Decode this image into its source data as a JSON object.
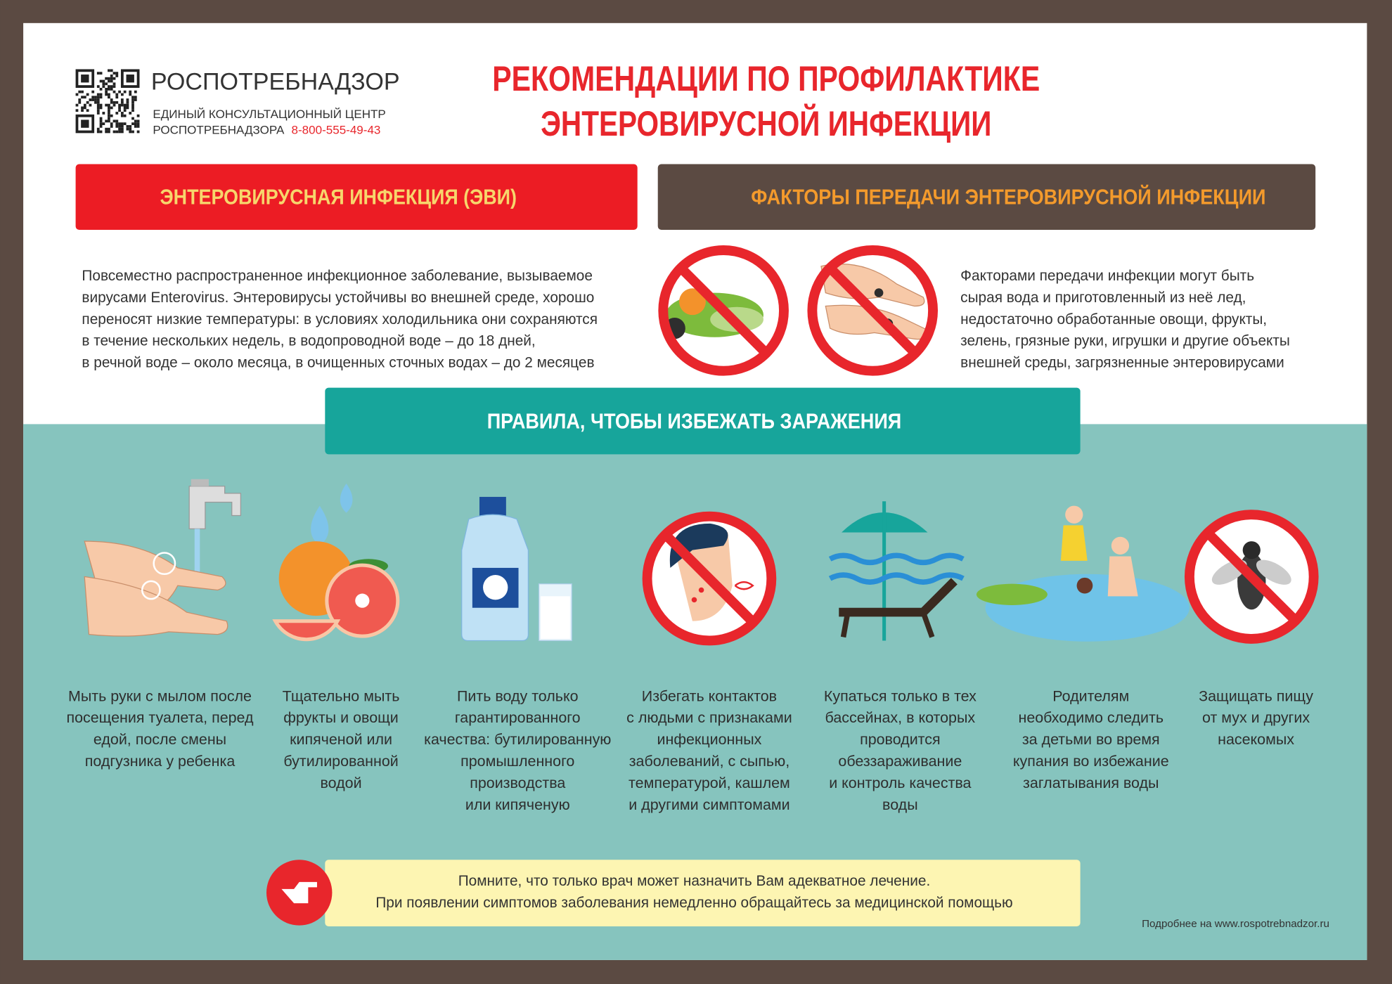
{
  "header": {
    "org": "РОСПОТРЕБНАДЗОР",
    "center_line": "ЕДИНЫЙ КОНСУЛЬТАЦИОННЫЙ ЦЕНТР",
    "center_line2": "РОСПОТРЕБНАДЗОРА",
    "phone": "8-800-555-49-43",
    "title_lines": [
      "РЕКОМЕНДАЦИИ ПО ПРОФИЛАКТИКЕ",
      "ЭНТЕРОВИРУСНОЙ ИНФЕКЦИИ"
    ]
  },
  "infection": {
    "heading": "ЭНТЕРОВИРУСНАЯ ИНФЕКЦИЯ (ЭВИ)",
    "lines": [
      "Повсеместно распространенное инфекционное заболевание, вызываемое",
      "вирусами Enterovirus. Энтеровирусы устойчивы во внешней среде, хорошо",
      "переносят низкие температуры: в условиях холодильника они сохраняются",
      "в течение нескольких недель, в водопроводной воде – до 18 дней,",
      "в речной воде – около месяца, в очищенных сточных водах – до 2 месяцев"
    ]
  },
  "factors": {
    "heading": "ФАКТОРЫ ПЕРЕДАЧИ ЭНТЕРОВИРУСНОЙ ИНФЕКЦИИ",
    "lines": [
      "Факторами передачи инфекции могут быть",
      "сырая вода и приготовленный из неё лед,",
      "недостаточно обработанные овощи, фрукты,",
      "зелень, грязные руки, игрушки и другие объекты",
      "внешней среды, загрязненные энтеровирусами"
    ]
  },
  "rules": {
    "heading": "ПРАВИЛА, ЧТОБЫ ИЗБЕЖАТЬ ЗАРАЖЕНИЯ",
    "items": [
      {
        "lines": [
          "Мыть руки с мылом после",
          "посещения туалета, перед",
          "едой, после смены",
          "подгузника у ребенка"
        ]
      },
      {
        "lines": [
          "Тщательно мыть",
          "фрукты и овощи",
          "кипяченой или",
          "бутилированной",
          "водой"
        ]
      },
      {
        "lines": [
          "Пить воду только",
          "гарантированного",
          "качества: бутилированную",
          "промышленного",
          "производства",
          "или кипяченую"
        ]
      },
      {
        "lines": [
          "Избегать контактов",
          "с людьми с признаками",
          "инфекционных",
          "заболеваний, с сыпью,",
          "температурой, кашлем",
          "и другими симптомами"
        ]
      },
      {
        "lines": [
          "Купаться только в тех",
          "бассейнах, в которых",
          "проводится",
          "обеззараживание",
          "и контроль качества",
          "воды"
        ]
      },
      {
        "lines": [
          "Родителям",
          "необходимо следить",
          "за детьми во время",
          "купания во избежание",
          "заглатывания воды"
        ]
      },
      {
        "lines": [
          "Защищать пищу",
          "от мух и других",
          "насекомых"
        ]
      }
    ]
  },
  "reminder": {
    "lines": [
      "Помните, что только врач может назначить Вам адекватное лечение.",
      "При появлении симптомов заболевания немедленно обращайтесь за медицинской помощью"
    ]
  },
  "footer": "Подробнее на www.rospotrebnadzor.ru"
}
